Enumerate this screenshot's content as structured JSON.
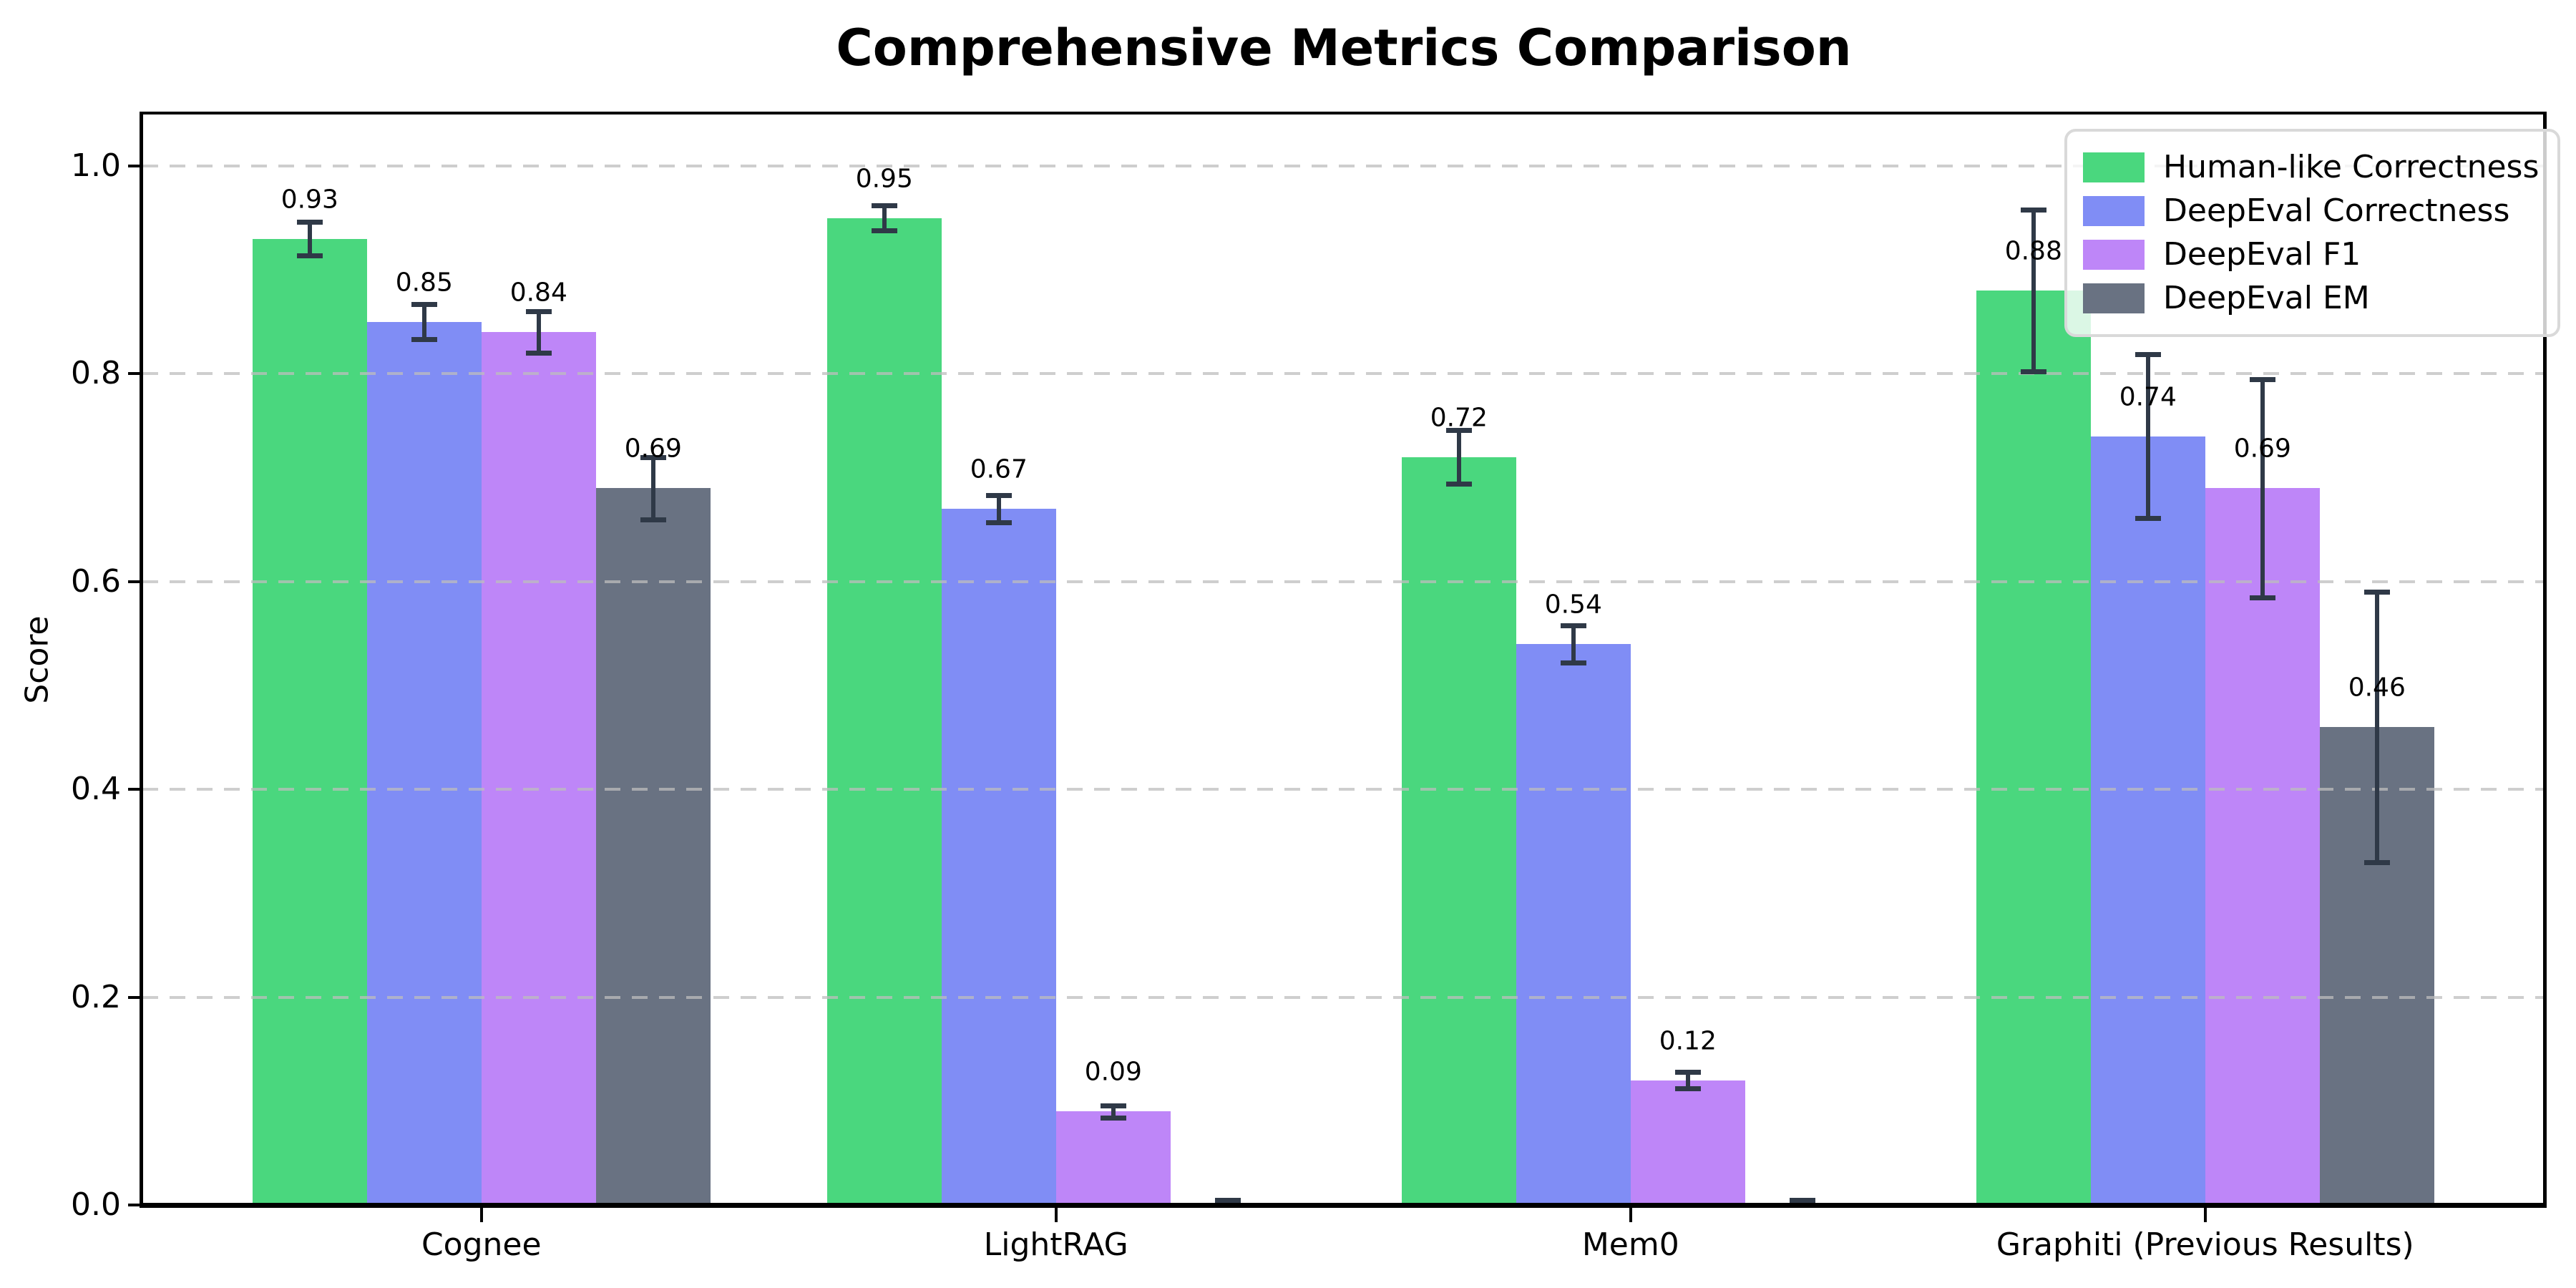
{
  "chart_data": {
    "type": "bar",
    "title": "Comprehensive Metrics Comparison",
    "ylabel": "Score",
    "xlabel": "",
    "categories": [
      "Cognee",
      "LightRAG",
      "Mem0",
      "Graphiti (Previous Results)"
    ],
    "series": [
      {
        "name": "Human-like Correctness",
        "color": "#4ad77e",
        "values": [
          0.93,
          0.95,
          0.72,
          0.88
        ],
        "errors": [
          0.016,
          0.012,
          0.026,
          0.078
        ]
      },
      {
        "name": "DeepEval Correctness",
        "color": "#808df5",
        "values": [
          0.85,
          0.67,
          0.54,
          0.74
        ],
        "errors": [
          0.017,
          0.013,
          0.018,
          0.079
        ]
      },
      {
        "name": "DeepEval F1",
        "color": "#be86f8",
        "values": [
          0.84,
          0.09,
          0.12,
          0.69
        ],
        "errors": [
          0.02,
          0.006,
          0.008,
          0.105
        ]
      },
      {
        "name": "DeepEval EM",
        "color": "#697282",
        "values": [
          0.69,
          0.0,
          0.0,
          0.46
        ],
        "errors": [
          0.03,
          0.005,
          0.005,
          0.13
        ]
      }
    ],
    "value_label_decimals": 2,
    "show_value_label_for_zero": false,
    "ylim": [
      0.0,
      1.05
    ],
    "yticks": [
      0.0,
      0.2,
      0.4,
      0.6,
      0.8,
      1.0
    ],
    "ytick_labels": [
      "0.0",
      "0.2",
      "0.4",
      "0.6",
      "0.8",
      "1.0"
    ],
    "grid": {
      "axis": "y",
      "style": "dashed",
      "on": true
    },
    "legend": {
      "position": "upper right"
    },
    "colors": {
      "error_bar": "#2f3947",
      "grid": "#bdbdbd",
      "spine": "#000000",
      "text": "#000000",
      "background": "#ffffff"
    }
  }
}
